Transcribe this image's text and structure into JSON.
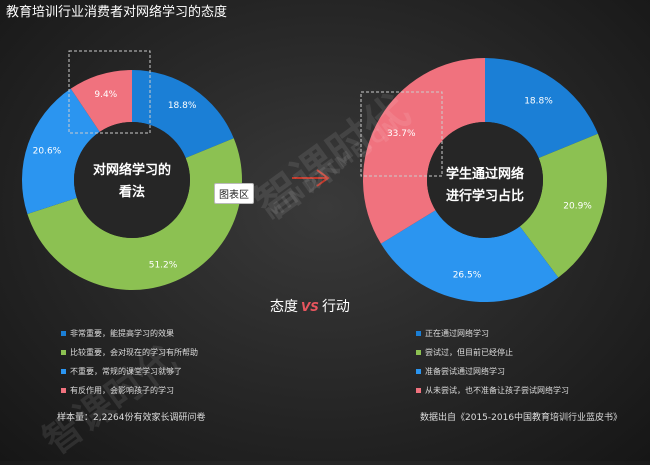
{
  "title": "教育培训行业消费者对网络学习的态度",
  "tooltip": "图表区",
  "section_title": {
    "left": "态度",
    "vs": "VS",
    "right": "行动"
  },
  "watermark": {
    "cn": "智课时代",
    "en": "MINDTIME.CN"
  },
  "sample_note": "样本量：2,2264份有效家长调研问卷",
  "source_note": "数据出自《2015-2016中国教育培训行业蓝皮书》",
  "chart_data": [
    {
      "type": "pie",
      "center_label": [
        "对网络学习的",
        "看法"
      ],
      "categories": [
        "非常重要，能提高学习的效果",
        "比较重要，会对现在的学习有所帮助",
        "不重要，常规的课堂学习就够了",
        "有反作用，会影响孩子的学习"
      ],
      "values": [
        18.8,
        51.2,
        20.6,
        9.4
      ],
      "labels": [
        "18.8%",
        "51.2%",
        "20.6%",
        "9.4%"
      ],
      "colors": [
        "#1b7fd6",
        "#8cc152",
        "#2b95f0",
        "#f0727e"
      ]
    },
    {
      "type": "pie",
      "center_label": [
        "学生通过网络",
        "进行学习占比"
      ],
      "categories": [
        "正在通过网络学习",
        "尝试过，但目前已经停止",
        "准备尝试通过网络学习",
        "从未尝试，也不准备让孩子尝试网络学习"
      ],
      "values": [
        18.8,
        20.9,
        26.5,
        33.7
      ],
      "labels": [
        "18.8%",
        "20.9%",
        "26.5%",
        "33.7%"
      ],
      "colors": [
        "#1b7fd6",
        "#8cc152",
        "#2b95f0",
        "#f0727e"
      ]
    }
  ]
}
